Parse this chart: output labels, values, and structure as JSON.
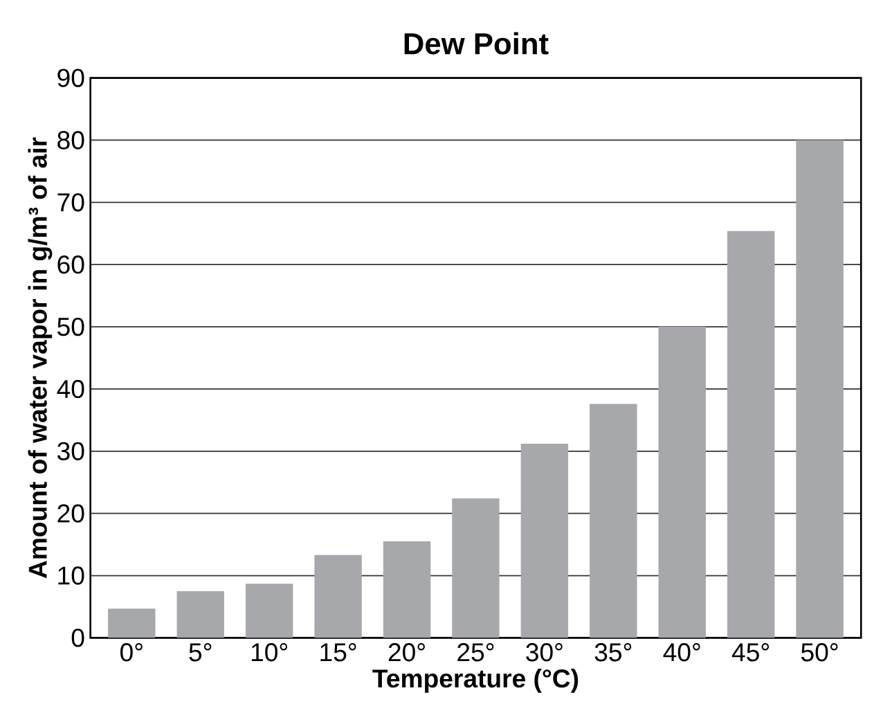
{
  "chart_data": {
    "type": "bar",
    "title": "Dew Point",
    "xlabel": "Temperature (°C)",
    "ylabel": "Amount of water vapor in g/m³ of air",
    "categories": [
      "0°",
      "5°",
      "10°",
      "15°",
      "20°",
      "25°",
      "30°",
      "35°",
      "40°",
      "45°",
      "50°"
    ],
    "values": [
      4.7,
      7.5,
      8.7,
      13.3,
      15.5,
      22.4,
      31.2,
      37.6,
      50,
      65.4,
      80
    ],
    "color": "#a7a8ab",
    "ylim": [
      0,
      90
    ],
    "yticks": [
      0,
      10,
      20,
      30,
      40,
      50,
      60,
      70,
      80,
      90
    ],
    "grid": "y"
  }
}
